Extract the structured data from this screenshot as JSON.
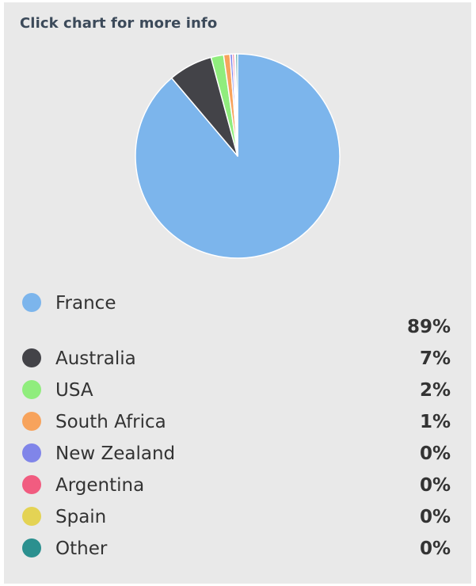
{
  "header": {
    "title": "Click chart for more info"
  },
  "chart_data": {
    "type": "pie",
    "title": "",
    "categories": [
      "France",
      "Australia",
      "USA",
      "South Africa",
      "New Zealand",
      "Argentina",
      "Spain",
      "Other"
    ],
    "values": [
      89,
      7,
      2,
      1,
      0.4,
      0.3,
      0.2,
      0.3
    ],
    "value_labels": [
      "89%",
      "7%",
      "2%",
      "1%",
      "0%",
      "0%",
      "0%",
      "0%"
    ],
    "colors": [
      "#7cb5ec",
      "#434348",
      "#90ed7d",
      "#f7a35c",
      "#8085e9",
      "#f15c80",
      "#e4d354",
      "#2b908f"
    ],
    "legend_position": "bottom"
  }
}
